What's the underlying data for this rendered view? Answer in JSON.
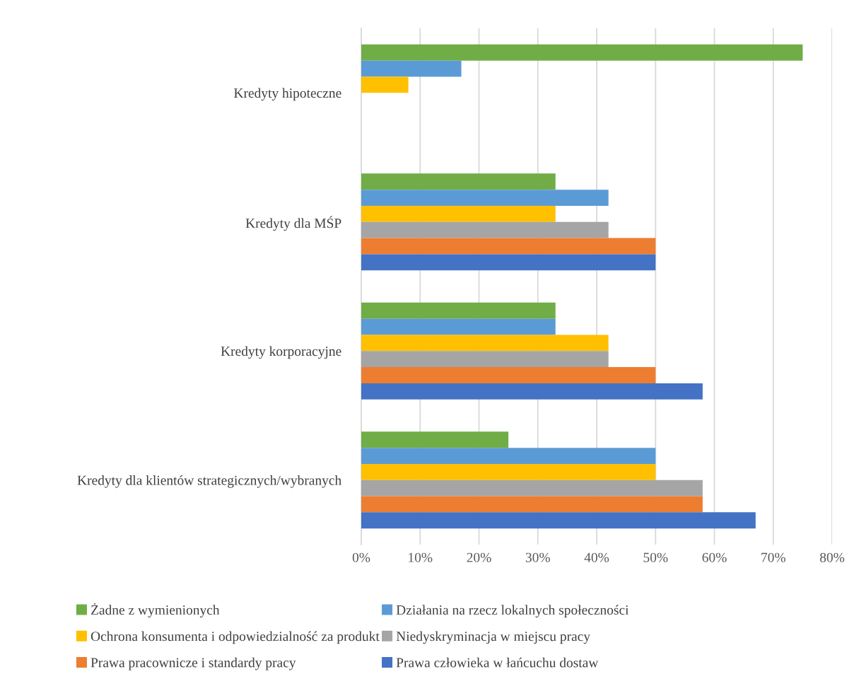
{
  "chart_data": {
    "type": "bar",
    "orientation": "horizontal",
    "categories": [
      "Kredyty hipoteczne",
      "Kredyty dla MŚP",
      "Kredyty korporacyjne",
      "Kredyty dla klientów strategicznych/wybranych"
    ],
    "series": [
      {
        "name": "Żadne z wymienionych",
        "color": "#70ad47",
        "values": [
          75,
          33,
          33,
          25
        ]
      },
      {
        "name": "Działania na rzecz lokalnych społeczności",
        "color": "#5b9bd5",
        "values": [
          17,
          42,
          33,
          50
        ]
      },
      {
        "name": "Ochrona konsumenta i odpowiedzialność za produkt",
        "color": "#ffc000",
        "values": [
          8,
          33,
          42,
          50
        ]
      },
      {
        "name": "Niedyskryminacja w miejscu pracy",
        "color": "#a5a5a5",
        "values": [
          null,
          42,
          42,
          58
        ]
      },
      {
        "name": "Prawa pracownicze i standardy pracy",
        "color": "#ed7d31",
        "values": [
          null,
          50,
          50,
          58
        ]
      },
      {
        "name": "Prawa człowieka w łańcuchu dostaw",
        "color": "#4472c4",
        "values": [
          null,
          50,
          58,
          67
        ]
      }
    ],
    "xlim": [
      0,
      80
    ],
    "xticks": [
      {
        "value": 0,
        "label": "0%"
      },
      {
        "value": 10,
        "label": "10%"
      },
      {
        "value": 20,
        "label": "20%"
      },
      {
        "value": 30,
        "label": "30%"
      },
      {
        "value": 40,
        "label": "40%"
      },
      {
        "value": 50,
        "label": "50%"
      },
      {
        "value": 60,
        "label": "60%"
      },
      {
        "value": 70,
        "label": "70%"
      },
      {
        "value": 80,
        "label": "80%"
      }
    ],
    "grid": "x",
    "legend": "bottom"
  }
}
